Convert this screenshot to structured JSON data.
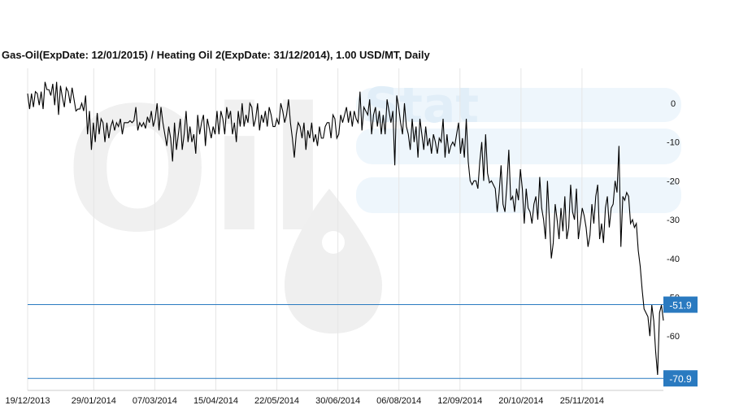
{
  "title": "Gas-Oil(ExpDate: 12/01/2015) / Heating Oil 2(ExpDate: 31/12/2014), 1.00 USD/MT, Daily",
  "watermark": {
    "logo_text": "Oil",
    "logo_text_2": "Stat"
  },
  "colors": {
    "line": "#000000",
    "grid": "#e6e6e6",
    "hline": "#2a7ac0",
    "label_bg": "#2a7ac0",
    "label_text": "#ffffff",
    "axis_text": "#111111"
  },
  "chart_data": {
    "type": "line",
    "x_tick_labels": [
      "19/12/2013",
      "29/01/2014",
      "07/03/2014",
      "15/04/2014",
      "22/05/2014",
      "30/06/2014",
      "06/08/2014",
      "12/09/2014",
      "20/10/2014",
      "25/11/2014"
    ],
    "y_ticks": [
      0,
      -10,
      -20,
      -30,
      -40,
      -50,
      -60
    ],
    "y_tick_labels": [
      "0",
      "-10",
      "-20",
      "-30",
      "-40",
      "-50",
      "-60"
    ],
    "ylim": [
      -74,
      9
    ],
    "xlim": [
      0,
      250
    ],
    "x_tick_index": [
      0,
      26,
      50,
      74,
      98,
      122,
      146,
      170,
      194,
      218
    ],
    "grid": "vertical",
    "horizontal_lines": [
      {
        "value": -51.9,
        "label": "-51.9"
      },
      {
        "value": -70.9,
        "label": "-70.9"
      }
    ],
    "series": [
      {
        "values": [
          2.5,
          -1.5,
          2.5,
          -1,
          3,
          2.5,
          -0.5,
          3,
          -1.5,
          5.5,
          3.5,
          3.5,
          2,
          5,
          -0.5,
          5.5,
          -3,
          4.5,
          1.5,
          -1,
          4,
          3,
          0,
          4,
          1,
          -2,
          -1.5,
          -1.5,
          0,
          -2,
          2,
          -8,
          -2,
          -12,
          -5,
          -10,
          -2.5,
          -8,
          -4,
          -5,
          -10,
          -5,
          -9,
          -6,
          -4.5,
          -7,
          -5,
          -6,
          -4,
          -8,
          -5,
          -5,
          -5,
          -4.5,
          -5,
          -4.5,
          -1,
          -7,
          -5,
          -6,
          -5,
          -6.5,
          -3.5,
          -5,
          -2,
          -6,
          -4,
          0,
          -7,
          -1,
          -5,
          -8,
          -11,
          -6,
          -9,
          -15,
          -5,
          -12,
          -8,
          -4,
          -12,
          -8,
          -2,
          -10,
          -6,
          -10,
          -8,
          -13,
          -3,
          -8,
          -5,
          -3,
          -11,
          -4,
          -6.5,
          -9,
          -6,
          -8,
          -2,
          -8,
          -2,
          -4,
          -8,
          -1,
          -4,
          -2,
          -8,
          -5,
          -10,
          -2,
          -6,
          0,
          -6,
          -3,
          -5,
          0,
          -1,
          -6,
          -4,
          0,
          -7,
          -3,
          -5,
          -2,
          -6,
          -1,
          -3,
          -6,
          -6,
          -4,
          -5.5,
          0,
          -2,
          -5,
          -3,
          1,
          -5,
          -9,
          -14,
          -8,
          -5,
          -6,
          -9,
          -5,
          -12,
          -7,
          -9,
          -5,
          -10,
          -8,
          -11,
          -6,
          -9,
          -9,
          -6,
          -5,
          -5,
          -9,
          -3,
          -4,
          -9,
          -8,
          -3,
          -5,
          -3,
          -1,
          -5,
          -2,
          -6,
          -2,
          -4,
          -5,
          3,
          -7,
          -1,
          -2,
          -3,
          1,
          -8,
          -3,
          -1,
          -6,
          -2,
          -8,
          -3,
          -8,
          1,
          -2,
          -5,
          -2,
          -16,
          2,
          -1,
          -5,
          -8,
          0,
          -6,
          -8,
          -12,
          -4,
          -10,
          -6,
          -14,
          -4,
          -8,
          -12,
          -6,
          -11,
          -9,
          -13,
          -8,
          -10,
          -13,
          -9,
          -10,
          -4,
          -14,
          -8,
          -13,
          -11,
          -10,
          -11,
          -8,
          -5,
          -13,
          -9,
          -14,
          -4,
          -15,
          -20,
          -21,
          -20,
          -20,
          -22,
          -15,
          -10,
          -20,
          -8,
          -18,
          -20.5,
          -20,
          -21,
          -22,
          -28,
          -23,
          -16,
          -26,
          -28,
          -21,
          -12,
          -25,
          -24,
          -28,
          -22,
          -25,
          -17,
          -22,
          -31,
          -22,
          -27,
          -28,
          -31,
          -26,
          -24,
          -30,
          -19,
          -27,
          -30,
          -35,
          -20,
          -30,
          -40,
          -36,
          -26,
          -30,
          -35,
          -27,
          -33,
          -24,
          -35,
          -32,
          -21,
          -28,
          -30,
          -22,
          -35,
          -31,
          -27,
          -29,
          -32,
          -37,
          -34,
          -26,
          -31,
          -24,
          -21,
          -35,
          -31,
          -36,
          -27,
          -24,
          -32,
          -27,
          -26,
          -20,
          -23,
          -11,
          -37,
          -24,
          -25,
          -23,
          -24,
          -31,
          -30,
          -32,
          -31,
          -38,
          -42,
          -48,
          -53,
          -54,
          -55,
          -60,
          -52,
          -56,
          -64,
          -70,
          -54,
          -52,
          -56
        ]
      }
    ]
  }
}
